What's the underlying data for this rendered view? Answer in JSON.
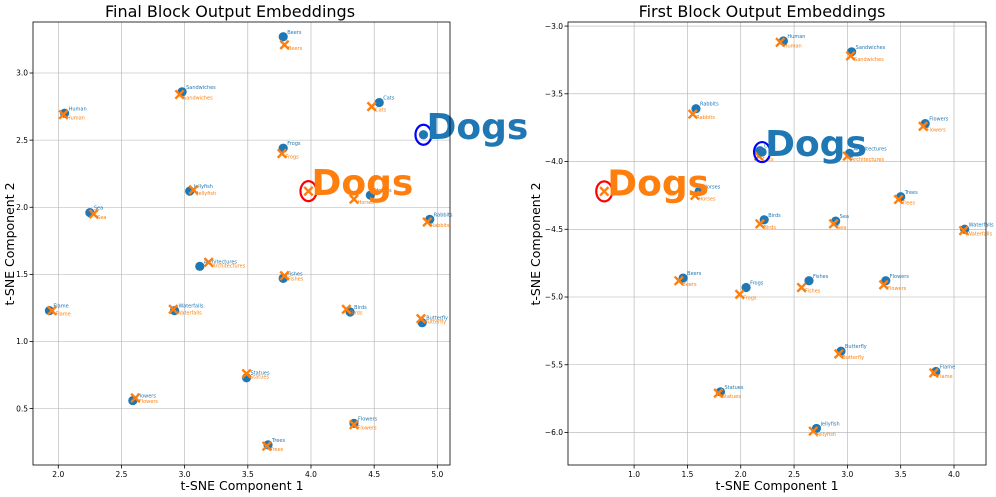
{
  "colors": {
    "blue": "#1f77b4",
    "orange": "#ff7f0e",
    "ring_blue": "#0000ff",
    "ring_red": "#ff0000"
  },
  "chart_data": [
    {
      "type": "scatter",
      "title": "Final Block Output Embeddings",
      "xlabel": "t-SNE Component 1",
      "ylabel": "t-SNE Component 2",
      "xlim": [
        1.8,
        5.1
      ],
      "ylim": [
        0.08,
        3.38
      ],
      "xticks": [
        2.0,
        2.5,
        3.0,
        3.5,
        4.0,
        4.5,
        5.0
      ],
      "xtick_labels": [
        "2.0",
        "2.5",
        "3.0",
        "3.5",
        "4.0",
        "4.5",
        "5.0"
      ],
      "yticks": [
        0.5,
        1.0,
        1.5,
        2.0,
        2.5,
        3.0
      ],
      "ytick_labels": [
        "0.5",
        "1.0",
        "1.5",
        "2.0",
        "2.5",
        "3.0"
      ],
      "grid": true,
      "series": [
        {
          "name": "circles",
          "marker": "o",
          "points": [
            {
              "label": "Beers",
              "x": 3.78,
              "y": 3.27
            },
            {
              "label": "Sandwiches",
              "x": 2.98,
              "y": 2.86
            },
            {
              "label": "Human",
              "x": 2.05,
              "y": 2.7
            },
            {
              "label": "Cats",
              "x": 4.54,
              "y": 2.78
            },
            {
              "label": "Frogs",
              "x": 3.78,
              "y": 2.44
            },
            {
              "label": "Jellyfish",
              "x": 3.04,
              "y": 2.12
            },
            {
              "label": "Sea",
              "x": 2.25,
              "y": 1.96
            },
            {
              "label": "Horses",
              "x": 4.47,
              "y": 2.09
            },
            {
              "label": "Rabbits",
              "x": 4.94,
              "y": 1.91
            },
            {
              "label": "Architectures",
              "x": 3.12,
              "y": 1.56
            },
            {
              "label": "Fishes",
              "x": 3.78,
              "y": 1.47
            },
            {
              "label": "Flame",
              "x": 1.93,
              "y": 1.23
            },
            {
              "label": "Waterfalls",
              "x": 2.92,
              "y": 1.23
            },
            {
              "label": "Birds",
              "x": 4.31,
              "y": 1.22
            },
            {
              "label": "Butterfly",
              "x": 4.88,
              "y": 1.14
            },
            {
              "label": "Statues",
              "x": 3.49,
              "y": 0.73
            },
            {
              "label": "Flowers",
              "x": 2.59,
              "y": 0.56
            },
            {
              "label": "Flowers",
              "x": 4.34,
              "y": 0.39
            },
            {
              "label": "Trees",
              "x": 3.66,
              "y": 0.23
            }
          ]
        },
        {
          "name": "crosses",
          "marker": "x",
          "points": [
            {
              "label": "Beers",
              "x": 3.79,
              "y": 3.21
            },
            {
              "label": "Sandwiches",
              "x": 2.96,
              "y": 2.84
            },
            {
              "label": "Human",
              "x": 2.04,
              "y": 2.69
            },
            {
              "label": "Cats",
              "x": 4.48,
              "y": 2.75
            },
            {
              "label": "Frogs",
              "x": 3.77,
              "y": 2.4
            },
            {
              "label": "Jellyfish",
              "x": 3.07,
              "y": 2.13
            },
            {
              "label": "Sea",
              "x": 2.28,
              "y": 1.95
            },
            {
              "label": "Horses",
              "x": 4.34,
              "y": 2.06
            },
            {
              "label": "Rabbits",
              "x": 4.92,
              "y": 1.89
            },
            {
              "label": "Architectures",
              "x": 3.19,
              "y": 1.59
            },
            {
              "label": "Fishes",
              "x": 3.79,
              "y": 1.49
            },
            {
              "label": "Flame",
              "x": 1.95,
              "y": 1.23
            },
            {
              "label": "Waterfalls",
              "x": 2.91,
              "y": 1.24
            },
            {
              "label": "Birds",
              "x": 4.28,
              "y": 1.24
            },
            {
              "label": "Butterfly",
              "x": 4.87,
              "y": 1.17
            },
            {
              "label": "Statues",
              "x": 3.49,
              "y": 0.76
            },
            {
              "label": "Flowers",
              "x": 2.61,
              "y": 0.58
            },
            {
              "label": "Flowers",
              "x": 4.34,
              "y": 0.38
            },
            {
              "label": "Trees",
              "x": 3.65,
              "y": 0.22
            }
          ]
        }
      ],
      "highlights": [
        {
          "label": "Dogs",
          "marker": "o",
          "x": 4.89,
          "y": 2.54,
          "color": "blue"
        },
        {
          "label": "Dogs",
          "marker": "x",
          "x": 3.98,
          "y": 2.12,
          "color": "orange"
        }
      ]
    },
    {
      "type": "scatter",
      "title": "First Block Output Embeddings",
      "xlabel": "t-SNE Component 1",
      "ylabel": "t-SNE Component 2",
      "xlim": [
        0.38,
        4.3
      ],
      "ylim": [
        -6.24,
        -2.97
      ],
      "xticks": [
        1.0,
        1.5,
        2.0,
        2.5,
        3.0,
        3.5,
        4.0
      ],
      "xtick_labels": [
        "1.0",
        "1.5",
        "2.0",
        "2.5",
        "3.0",
        "3.5",
        "4.0"
      ],
      "yticks": [
        -6.0,
        -5.5,
        -5.0,
        -4.5,
        -4.0,
        -3.5,
        -3.0
      ],
      "ytick_labels": [
        "−6.0",
        "−5.5",
        "−5.0",
        "−4.5",
        "−4.0",
        "−3.5",
        "−3.0"
      ],
      "grid": true,
      "series": [
        {
          "name": "circles",
          "marker": "o",
          "points": [
            {
              "label": "Human",
              "x": 2.4,
              "y": -3.11
            },
            {
              "label": "Sandwiches",
              "x": 3.04,
              "y": -3.19
            },
            {
              "label": "Rabbits",
              "x": 1.58,
              "y": -3.61
            },
            {
              "label": "Flowers",
              "x": 3.73,
              "y": -3.72
            },
            {
              "label": "Architectures",
              "x": 3.02,
              "y": -3.94
            },
            {
              "label": "Horses",
              "x": 1.61,
              "y": -4.22
            },
            {
              "label": "Trees",
              "x": 3.5,
              "y": -4.26
            },
            {
              "label": "Birds",
              "x": 2.22,
              "y": -4.43
            },
            {
              "label": "Sea",
              "x": 2.89,
              "y": -4.44
            },
            {
              "label": "Waterfalls",
              "x": 4.1,
              "y": -4.5
            },
            {
              "label": "Beers",
              "x": 1.46,
              "y": -4.86
            },
            {
              "label": "Fishes",
              "x": 2.64,
              "y": -4.88
            },
            {
              "label": "Flowers",
              "x": 3.36,
              "y": -4.88
            },
            {
              "label": "Frogs",
              "x": 2.05,
              "y": -4.93
            },
            {
              "label": "Butterfly",
              "x": 2.94,
              "y": -5.4
            },
            {
              "label": "Flame",
              "x": 3.83,
              "y": -5.55
            },
            {
              "label": "Statues",
              "x": 1.81,
              "y": -5.7
            },
            {
              "label": "Jellyfish",
              "x": 2.71,
              "y": -5.97
            },
            {
              "label": "Cats",
              "x": 2.18,
              "y": -3.92
            }
          ]
        },
        {
          "name": "crosses",
          "marker": "x",
          "points": [
            {
              "label": "Human",
              "x": 2.37,
              "y": -3.12
            },
            {
              "label": "Sandwiches",
              "x": 3.03,
              "y": -3.22
            },
            {
              "label": "Rabbits",
              "x": 1.55,
              "y": -3.65
            },
            {
              "label": "Flowers",
              "x": 3.71,
              "y": -3.74
            },
            {
              "label": "Architectures",
              "x": 3.0,
              "y": -3.96
            },
            {
              "label": "Horses",
              "x": 1.57,
              "y": -4.25
            },
            {
              "label": "Trees",
              "x": 3.48,
              "y": -4.28
            },
            {
              "label": "Birds",
              "x": 2.18,
              "y": -4.46
            },
            {
              "label": "Sea",
              "x": 2.87,
              "y": -4.46
            },
            {
              "label": "Waterfalls",
              "x": 4.09,
              "y": -4.51
            },
            {
              "label": "Beers",
              "x": 1.42,
              "y": -4.88
            },
            {
              "label": "Fishes",
              "x": 2.57,
              "y": -4.93
            },
            {
              "label": "Flowers",
              "x": 3.34,
              "y": -4.91
            },
            {
              "label": "Frogs",
              "x": 1.99,
              "y": -4.98
            },
            {
              "label": "Butterfly",
              "x": 2.92,
              "y": -5.42
            },
            {
              "label": "Flame",
              "x": 3.81,
              "y": -5.56
            },
            {
              "label": "Statues",
              "x": 1.79,
              "y": -5.71
            },
            {
              "label": "Jellyfish",
              "x": 2.68,
              "y": -5.99
            },
            {
              "label": "Cats",
              "x": 2.17,
              "y": -3.96
            }
          ]
        }
      ],
      "highlights": [
        {
          "label": "Dogs",
          "marker": "o",
          "x": 2.2,
          "y": -3.93,
          "color": "blue"
        },
        {
          "label": "Dogs",
          "marker": "x",
          "x": 0.72,
          "y": -4.22,
          "color": "orange"
        }
      ]
    }
  ]
}
